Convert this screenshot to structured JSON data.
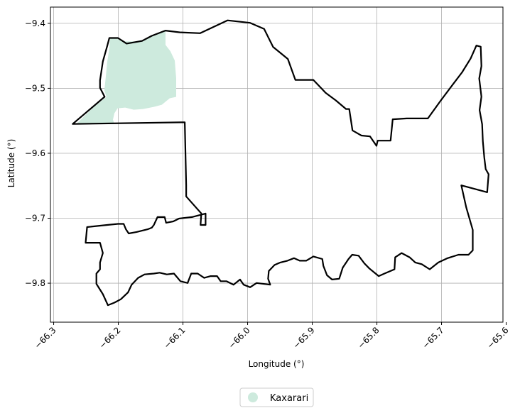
{
  "chart_data": {
    "type": "map",
    "xlabel": "Longitude (°)",
    "ylabel": "Latitude (°)",
    "xlim": [
      -66.305,
      -65.605
    ],
    "ylim": [
      -9.86,
      -9.375
    ],
    "grid": true,
    "x_ticks": [
      -66.3,
      -66.2,
      -66.1,
      -66.0,
      -65.9,
      -65.8,
      -65.7,
      -65.6
    ],
    "x_tick_labels": [
      "−66.3",
      "−66.2",
      "−66.1",
      "−66.0",
      "−65.9",
      "−65.8",
      "−65.7",
      "−65.6"
    ],
    "y_ticks": [
      -9.4,
      -9.5,
      -9.6,
      -9.7,
      -9.8
    ],
    "y_tick_labels": [
      "−9.4",
      "−9.5",
      "−9.6",
      "−9.7",
      "−9.8"
    ],
    "legend": {
      "placement": "bottom-center",
      "entries": [
        {
          "name": "Kaxarari",
          "color": "#cdeadd"
        }
      ]
    },
    "territory_polygon": {
      "name": "Kaxarari",
      "color": "#cdeadd",
      "points": [
        [
          -66.2,
          -9.4233
        ],
        [
          -66.1905,
          -9.4277
        ],
        [
          -66.1739,
          -9.4277
        ],
        [
          -66.1561,
          -9.4244
        ],
        [
          -66.1417,
          -9.4157
        ],
        [
          -66.127,
          -9.4124
        ],
        [
          -66.127,
          -9.4332
        ],
        [
          -66.1194,
          -9.4431
        ],
        [
          -66.1127,
          -9.4573
        ],
        [
          -66.1105,
          -9.4847
        ],
        [
          -66.1105,
          -9.5132
        ],
        [
          -66.1205,
          -9.5154
        ],
        [
          -66.1327,
          -9.5253
        ],
        [
          -66.145,
          -9.5286
        ],
        [
          -66.1616,
          -9.5319
        ],
        [
          -66.1761,
          -9.533
        ],
        [
          -66.1894,
          -9.5297
        ],
        [
          -66.2011,
          -9.5308
        ],
        [
          -66.2061,
          -9.5384
        ],
        [
          -66.2083,
          -9.5483
        ],
        [
          -66.2061,
          -9.5549
        ],
        [
          -66.265,
          -9.5549
        ],
        [
          -66.2378,
          -9.5286
        ],
        [
          -66.2183,
          -9.5132
        ],
        [
          -66.2216,
          -9.5033
        ],
        [
          -66.2194,
          -9.4825
        ],
        [
          -66.2172,
          -9.4595
        ],
        [
          -66.2139,
          -9.4387
        ],
        [
          -66.2128,
          -9.4233
        ]
      ]
    },
    "boundary_polygon": {
      "name": "boundary",
      "color": "#000000",
      "points": [
        [
          -66.2706,
          -9.5549
        ],
        [
          -66.2211,
          -9.5131
        ],
        [
          -66.2283,
          -9.4992
        ],
        [
          -66.2283,
          -9.4877
        ],
        [
          -66.2239,
          -9.4587
        ],
        [
          -66.2172,
          -9.435
        ],
        [
          -66.2139,
          -9.4225
        ],
        [
          -66.2006,
          -9.4225
        ],
        [
          -66.1872,
          -9.4311
        ],
        [
          -66.1633,
          -9.4271
        ],
        [
          -66.1483,
          -9.4192
        ],
        [
          -66.1272,
          -9.4112
        ],
        [
          -66.1044,
          -9.4139
        ],
        [
          -66.0733,
          -9.4152
        ],
        [
          -66.0311,
          -9.3954
        ],
        [
          -65.9961,
          -9.3993
        ],
        [
          -65.9744,
          -9.4086
        ],
        [
          -65.9606,
          -9.4363
        ],
        [
          -65.9378,
          -9.4548
        ],
        [
          -65.9261,
          -9.4871
        ],
        [
          -65.8983,
          -9.4871
        ],
        [
          -65.8794,
          -9.5068
        ],
        [
          -65.8633,
          -9.5187
        ],
        [
          -65.8478,
          -9.5319
        ],
        [
          -65.8428,
          -9.5319
        ],
        [
          -65.8378,
          -9.5648
        ],
        [
          -65.8239,
          -9.5727
        ],
        [
          -65.8106,
          -9.574
        ],
        [
          -65.8006,
          -9.5885
        ],
        [
          -65.7989,
          -9.5806
        ],
        [
          -65.7789,
          -9.5806
        ],
        [
          -65.7756,
          -9.5477
        ],
        [
          -65.7539,
          -9.5464
        ],
        [
          -65.7211,
          -9.5464
        ],
        [
          -65.7011,
          -9.5187
        ],
        [
          -65.6822,
          -9.4937
        ],
        [
          -65.6683,
          -9.4755
        ],
        [
          -65.655,
          -9.4541
        ],
        [
          -65.6461,
          -9.4342
        ],
        [
          -65.6394,
          -9.4359
        ],
        [
          -65.6383,
          -9.4659
        ],
        [
          -65.6417,
          -9.4849
        ],
        [
          -65.6383,
          -9.5128
        ],
        [
          -65.6411,
          -9.5336
        ],
        [
          -65.6372,
          -9.5552
        ],
        [
          -65.6361,
          -9.5813
        ],
        [
          -65.6339,
          -9.6063
        ],
        [
          -65.6317,
          -9.6244
        ],
        [
          -65.6272,
          -9.6323
        ],
        [
          -65.6294,
          -9.66
        ],
        [
          -65.6694,
          -9.6494
        ],
        [
          -65.6617,
          -9.6837
        ],
        [
          -65.6517,
          -9.718
        ],
        [
          -65.6517,
          -9.7496
        ],
        [
          -65.6583,
          -9.7562
        ],
        [
          -65.6739,
          -9.7562
        ],
        [
          -65.6906,
          -9.7615
        ],
        [
          -65.705,
          -9.7681
        ],
        [
          -65.7183,
          -9.7786
        ],
        [
          -65.7306,
          -9.7708
        ],
        [
          -65.7406,
          -9.7681
        ],
        [
          -65.7494,
          -9.7602
        ],
        [
          -65.7617,
          -9.7536
        ],
        [
          -65.7717,
          -9.7602
        ],
        [
          -65.7728,
          -9.7786
        ],
        [
          -65.7883,
          -9.7852
        ],
        [
          -65.7972,
          -9.7891
        ],
        [
          -65.8117,
          -9.7773
        ],
        [
          -65.8194,
          -9.7694
        ],
        [
          -65.8283,
          -9.7576
        ],
        [
          -65.8383,
          -9.7562
        ],
        [
          -65.8439,
          -9.7628
        ],
        [
          -65.8528,
          -9.776
        ],
        [
          -65.8583,
          -9.7931
        ],
        [
          -65.8694,
          -9.7944
        ],
        [
          -65.8772,
          -9.7878
        ],
        [
          -65.8828,
          -9.7733
        ],
        [
          -65.8844,
          -9.7628
        ],
        [
          -65.8983,
          -9.7589
        ],
        [
          -65.9094,
          -9.7654
        ],
        [
          -65.9194,
          -9.7654
        ],
        [
          -65.9283,
          -9.7615
        ],
        [
          -65.9383,
          -9.7654
        ],
        [
          -65.9494,
          -9.7681
        ],
        [
          -65.9583,
          -9.772
        ],
        [
          -65.9672,
          -9.7812
        ],
        [
          -65.9683,
          -9.7931
        ],
        [
          -65.965,
          -9.8023
        ],
        [
          -65.9861,
          -9.7997
        ],
        [
          -65.9961,
          -9.8063
        ],
        [
          -66.0061,
          -9.8023
        ],
        [
          -66.0117,
          -9.7944
        ],
        [
          -66.0217,
          -9.8023
        ],
        [
          -66.0328,
          -9.797
        ],
        [
          -66.0417,
          -9.797
        ],
        [
          -66.0472,
          -9.7891
        ],
        [
          -66.0572,
          -9.7891
        ],
        [
          -66.0672,
          -9.7918
        ],
        [
          -66.0772,
          -9.7852
        ],
        [
          -66.0872,
          -9.7852
        ],
        [
          -66.0928,
          -9.7997
        ],
        [
          -66.1039,
          -9.797
        ],
        [
          -66.1139,
          -9.7852
        ],
        [
          -66.125,
          -9.7865
        ],
        [
          -66.1361,
          -9.7839
        ],
        [
          -66.145,
          -9.7852
        ],
        [
          -66.1594,
          -9.7865
        ],
        [
          -66.1694,
          -9.7918
        ],
        [
          -66.1794,
          -9.8023
        ],
        [
          -66.185,
          -9.8142
        ],
        [
          -66.1961,
          -9.8247
        ],
        [
          -66.2061,
          -9.83
        ],
        [
          -66.2161,
          -9.8339
        ],
        [
          -66.2239,
          -9.8168
        ],
        [
          -66.2339,
          -9.801
        ],
        [
          -66.2339,
          -9.7852
        ],
        [
          -66.2283,
          -9.7786
        ],
        [
          -66.2283,
          -9.7681
        ],
        [
          -66.2239,
          -9.7536
        ],
        [
          -66.2283,
          -9.7378
        ],
        [
          -66.2506,
          -9.7378
        ],
        [
          -66.2483,
          -9.7136
        ],
        [
          -66.2172,
          -9.7103
        ],
        [
          -66.2006,
          -9.7087
        ],
        [
          -66.1917,
          -9.7087
        ],
        [
          -66.1883,
          -9.7169
        ],
        [
          -66.1839,
          -9.7235
        ],
        [
          -66.1717,
          -9.7212
        ],
        [
          -66.1539,
          -9.7168
        ],
        [
          -66.1483,
          -9.7146
        ],
        [
          -66.145,
          -9.7103
        ],
        [
          -66.1394,
          -9.6982
        ],
        [
          -66.1283,
          -9.6982
        ],
        [
          -66.1261,
          -9.707
        ],
        [
          -66.115,
          -9.7049
        ],
        [
          -66.1061,
          -9.7005
        ],
        [
          -66.0861,
          -9.6982
        ],
        [
          -66.065,
          -9.6928
        ],
        [
          -66.065,
          -9.7103
        ],
        [
          -66.0728,
          -9.7103
        ],
        [
          -66.0716,
          -9.6927
        ],
        [
          -66.095,
          -9.6664
        ],
        [
          -66.095,
          -9.6493
        ],
        [
          -66.0972,
          -9.5523
        ],
        [
          -66.2706,
          -9.5549
        ]
      ]
    }
  }
}
